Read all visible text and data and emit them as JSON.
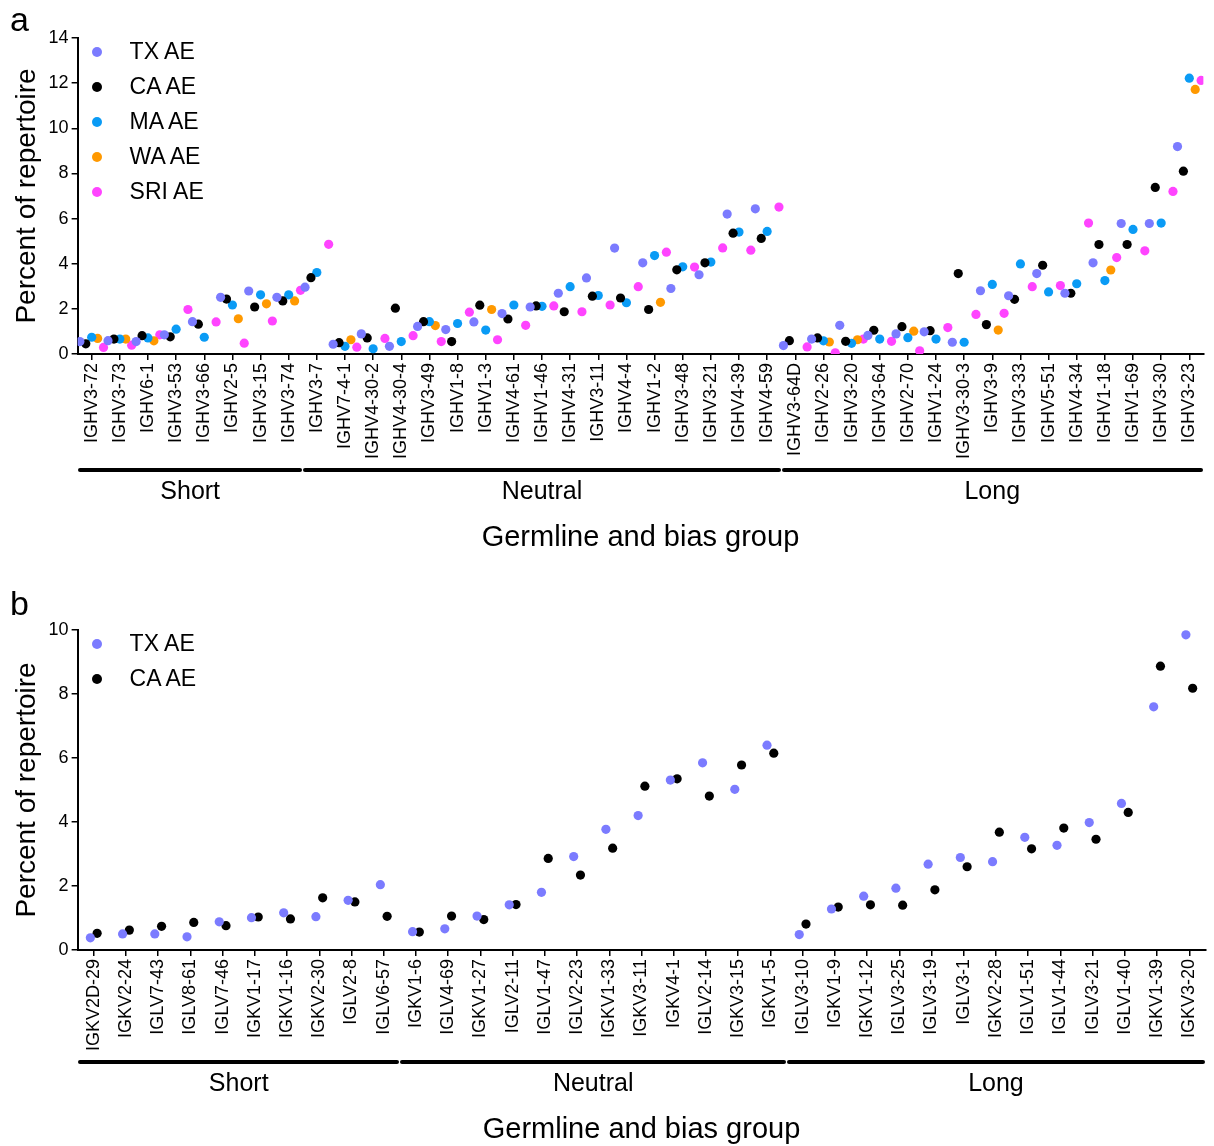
{
  "chart_data": [
    {
      "type": "scatter",
      "title": "a",
      "xlabel": "Germline and bias group",
      "ylabel": "Percent of repertoire",
      "legend": "top left",
      "marker": "circle",
      "annotations": [
        "Short",
        "Neutral",
        "Long"
      ],
      "ylim": [
        0,
        14
      ],
      "yticks": [
        0,
        2,
        4,
        6,
        8,
        10,
        12,
        14
      ],
      "categories": [
        "IGHV3-72",
        "IGHV3-73",
        "IGHV6-1",
        "IGHV3-53",
        "IGHV3-66",
        "IGHV2-5",
        "IGHV3-15",
        "IGHV3-74",
        "IGHV3-7",
        "IGHV7-4-1",
        "IGHV4-30-2",
        "IGHV4-30-4",
        "IGHV3-49",
        "IGHV1-8",
        "IGHV1-3",
        "IGHV4-61",
        "IGHV1-46",
        "IGHV4-31",
        "IGHV3-11",
        "IGHV4-4",
        "IGHV1-2",
        "IGHV3-48",
        "IGHV3-21",
        "IGHV4-39",
        "IGHV4-59",
        "IGHV3-64D",
        "IGHV2-26",
        "IGHV3-20",
        "IGHV3-64",
        "IGHV2-70",
        "IGHV1-24",
        "IGHV3-30-3",
        "IGHV3-9",
        "IGHV3-33",
        "IGHV5-51",
        "IGHV4-34",
        "IGHV1-18",
        "IGHV1-69",
        "IGHV3-30",
        "IGHV3-23"
      ],
      "series": [
        {
          "name": "TX AE",
          "color": "#7b7bff",
          "values": [
            0.55,
            0.59,
            0.55,
            0.85,
            1.43,
            2.51,
            2.79,
            2.51,
            2.96,
            0.43,
            0.89,
            0.34,
            1.22,
            1.08,
            1.42,
            1.79,
            2.08,
            2.69,
            3.37,
            4.69,
            4.04,
            2.9,
            3.51,
            6.2,
            6.43,
            0.37,
            0.66,
            1.27,
            0.82,
            0.89,
            0.98,
            0.52,
            2.8,
            2.58,
            3.56,
            2.69,
            4.04,
            5.78,
            5.78,
            9.19
          ]
        },
        {
          "name": "CA AE",
          "color": "#000000",
          "values": [
            0.45,
            0.66,
            0.81,
            0.76,
            1.32,
            2.43,
            2.08,
            2.35,
            3.38,
            0.5,
            0.71,
            2.03,
            1.43,
            0.55,
            2.16,
            1.55,
            2.13,
            1.87,
            2.56,
            2.48,
            1.97,
            3.73,
            4.04,
            5.35,
            5.12,
            0.59,
            0.71,
            0.56,
            1.05,
            1.21,
            1.03,
            3.56,
            1.3,
            2.42,
            3.93,
            2.69,
            4.85,
            4.85,
            7.38,
            8.1
          ]
        },
        {
          "name": "MA AE",
          "color": "#0a9bf5",
          "values": [
            0.74,
            0.66,
            0.71,
            1.1,
            0.74,
            2.17,
            2.62,
            2.62,
            3.61,
            0.34,
            0.23,
            0.55,
            1.43,
            1.35,
            1.06,
            2.17,
            2.11,
            2.98,
            2.59,
            2.27,
            4.36,
            3.86,
            4.07,
            5.4,
            5.43,
            null,
            0.58,
            0.47,
            0.66,
            0.72,
            0.66,
            0.52,
            3.08,
            3.99,
            2.75,
            3.11,
            3.25,
            5.52,
            5.8,
            12.22
          ]
        },
        {
          "name": "WA AE",
          "color": "#ff9900",
          "values": [
            0.69,
            0.66,
            0.58,
            null,
            null,
            1.56,
            2.22,
            2.35,
            null,
            0.63,
            null,
            null,
            1.26,
            null,
            1.97,
            null,
            null,
            null,
            null,
            null,
            2.29,
            null,
            null,
            null,
            null,
            null,
            0.53,
            0.63,
            null,
            1.01,
            null,
            null,
            1.06,
            null,
            null,
            null,
            3.72,
            null,
            null,
            11.72
          ]
        },
        {
          "name": "SRI AE",
          "color": "#ff44ff",
          "values": [
            0.29,
            0.39,
            0.85,
            1.97,
            1.42,
            0.48,
            1.46,
            2.82,
            4.86,
            0.3,
            0.69,
            0.81,
            0.55,
            1.85,
            0.63,
            1.27,
            2.13,
            1.87,
            2.17,
            2.98,
            4.51,
            3.85,
            4.7,
            4.6,
            6.51,
            0.31,
            0.05,
            0.66,
            0.56,
            0.14,
            1.17,
            1.75,
            1.8,
            2.98,
            3.03,
            5.8,
            4.27,
            4.57,
            7.2,
            12.12
          ]
        }
      ]
    },
    {
      "type": "scatter",
      "title": "b",
      "xlabel": "Germline and bias group",
      "ylabel": "Percent of repertoire",
      "legend": "top left",
      "marker": "circle",
      "annotations": [
        "Short",
        "Neutral",
        "Long"
      ],
      "ylim": [
        0,
        10
      ],
      "yticks": [
        0,
        2,
        4,
        6,
        8,
        10
      ],
      "categories": [
        "IGKV2D-29",
        "IGKV2-24",
        "IGLV7-43",
        "IGLV8-61",
        "IGLV7-46",
        "IGKV1-17",
        "IGKV1-16",
        "IGKV2-30",
        "IGLV2-8",
        "IGLV6-57",
        "IGKV1-6",
        "IGLV4-69",
        "IGKV1-27",
        "IGLV2-11",
        "IGLV1-47",
        "IGLV2-23",
        "IGKV1-33",
        "IGKV3-11",
        "IGKV4-1",
        "IGLV2-14",
        "IGKV3-15",
        "IGKV1-5",
        "IGLV3-10",
        "IGKV1-9",
        "IGKV1-12",
        "IGLV3-25",
        "IGLV3-19",
        "IGLV3-1",
        "IGKV2-28",
        "IGLV1-51",
        "IGLV1-44",
        "IGLV3-21",
        "IGLV1-40",
        "IGKV1-39",
        "IGKV3-20"
      ],
      "series": [
        {
          "name": "TX AE",
          "color": "#7b7bff",
          "values": [
            0.38,
            0.5,
            0.5,
            0.41,
            0.88,
            1.01,
            1.16,
            1.04,
            1.55,
            2.04,
            0.57,
            0.66,
            1.06,
            1.41,
            1.8,
            2.92,
            3.77,
            4.2,
            5.31,
            5.85,
            5.02,
            6.4,
            0.48,
            1.28,
            1.68,
            1.93,
            2.68,
            2.89,
            2.76,
            3.52,
            3.27,
            3.98,
            4.58,
            7.6,
            9.85
          ]
        },
        {
          "name": "CA AE",
          "color": "#000000",
          "values": [
            0.52,
            0.62,
            0.74,
            0.86,
            0.76,
            1.03,
            0.97,
            1.63,
            1.5,
            1.05,
            0.56,
            1.06,
            0.95,
            1.42,
            2.86,
            2.34,
            3.18,
            5.12,
            5.35,
            4.81,
            5.78,
            6.15,
            0.81,
            1.34,
            1.41,
            1.4,
            1.88,
            2.6,
            3.68,
            3.16,
            3.81,
            3.46,
            4.3,
            8.87,
            8.18
          ]
        }
      ]
    }
  ]
}
